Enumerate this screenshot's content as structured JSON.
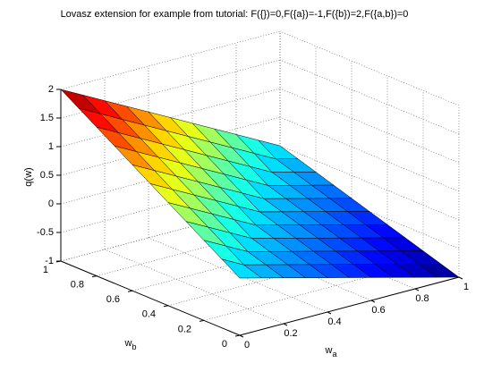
{
  "chart_data": {
    "type": "surface",
    "title": "Lovasz extension for example from tutorial: F({})=0,F({a})=-1,F({b})=2,F({a,b})=0",
    "xlabel": {
      "text": "w",
      "sub": "a"
    },
    "ylabel": {
      "text": "w",
      "sub": "b"
    },
    "zlabel": "q(w)",
    "x": [
      0,
      0.1,
      0.2,
      0.3,
      0.4,
      0.5,
      0.6,
      0.7,
      0.8,
      0.9,
      1
    ],
    "y": [
      0,
      0.1,
      0.2,
      0.3,
      0.4,
      0.5,
      0.6,
      0.7,
      0.8,
      0.9,
      1
    ],
    "z": [
      [
        0,
        -0.1,
        -0.2,
        -0.3,
        -0.4,
        -0.5,
        -0.6,
        -0.7,
        -0.8,
        -0.9,
        -1
      ],
      [
        0.2,
        0,
        -0.1,
        -0.2,
        -0.3,
        -0.4,
        -0.5,
        -0.6,
        -0.7,
        -0.8,
        -0.9
      ],
      [
        0.4,
        0.2,
        0,
        -0.1,
        -0.2,
        -0.3,
        -0.4,
        -0.5,
        -0.6,
        -0.7,
        -0.8
      ],
      [
        0.6,
        0.4,
        0.2,
        0,
        -0.1,
        -0.2,
        -0.3,
        -0.4,
        -0.5,
        -0.6,
        -0.7
      ],
      [
        0.8,
        0.6,
        0.4,
        0.2,
        0,
        -0.1,
        -0.2,
        -0.3,
        -0.4,
        -0.5,
        -0.6
      ],
      [
        1,
        0.8,
        0.6,
        0.4,
        0.2,
        0,
        -0.1,
        -0.2,
        -0.3,
        -0.4,
        -0.5
      ],
      [
        1.2,
        1,
        0.8,
        0.6,
        0.4,
        0.2,
        0,
        -0.1,
        -0.2,
        -0.3,
        -0.4
      ],
      [
        1.4,
        1.2,
        1,
        0.8,
        0.6,
        0.4,
        0.2,
        0,
        -0.1,
        -0.2,
        -0.3
      ],
      [
        1.6,
        1.4,
        1.2,
        1,
        0.8,
        0.6,
        0.4,
        0.2,
        0,
        -0.1,
        -0.2
      ],
      [
        1.8,
        1.6,
        1.4,
        1.2,
        1,
        0.8,
        0.6,
        0.4,
        0.2,
        0,
        -0.1
      ],
      [
        2,
        1.8,
        1.6,
        1.4,
        1.2,
        1,
        0.8,
        0.6,
        0.4,
        0.2,
        0
      ]
    ],
    "xlim": [
      0,
      1
    ],
    "ylim": [
      0,
      1
    ],
    "zlim": [
      -1,
      2
    ],
    "xticks": [
      0,
      0.2,
      0.4,
      0.6,
      0.8,
      1
    ],
    "yticks": [
      0,
      0.2,
      0.4,
      0.6,
      0.8,
      1
    ],
    "zticks": [
      -1,
      -0.5,
      0,
      0.5,
      1,
      1.5,
      2
    ],
    "colormap": "jet",
    "edge_color": "#000000",
    "grid": true
  }
}
